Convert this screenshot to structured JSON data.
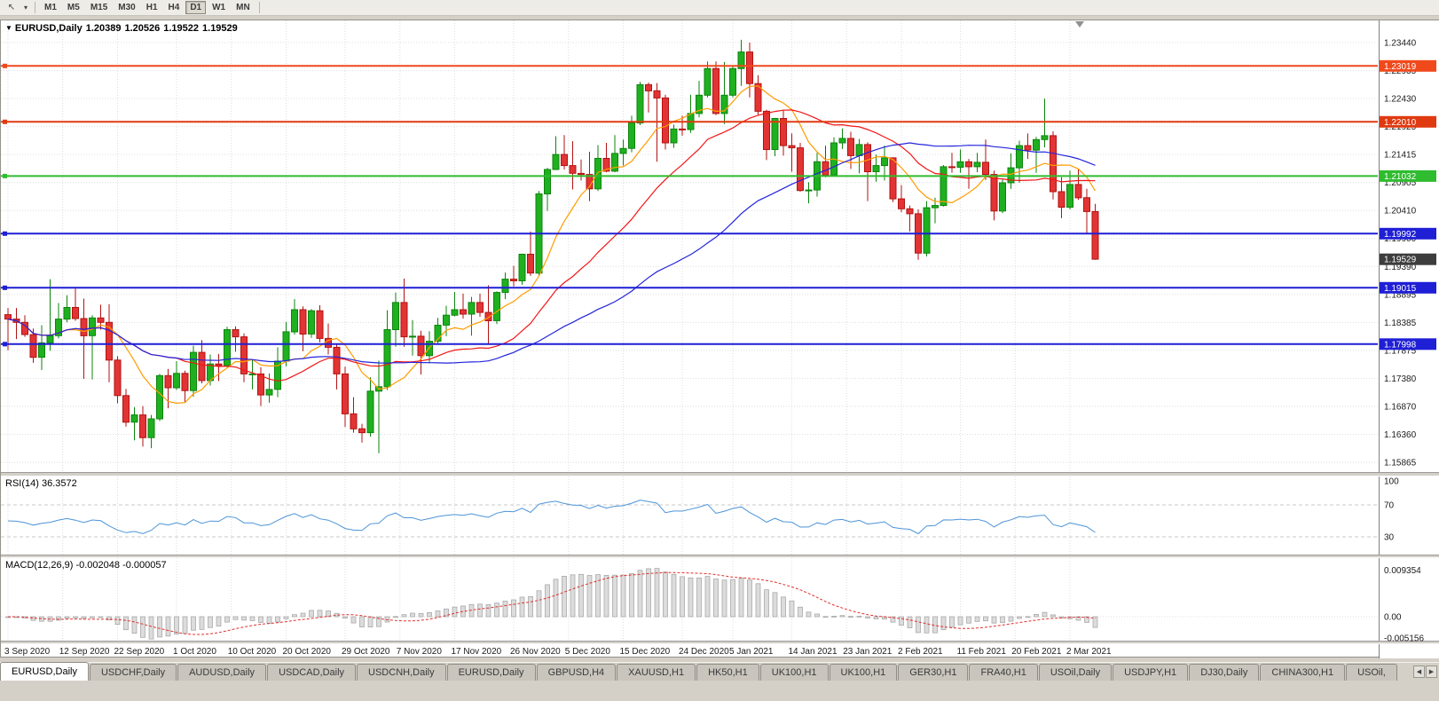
{
  "toolbar": {
    "pointer_glyph": "↖",
    "dropdown_glyph": "▾",
    "timeframes": [
      {
        "label": "M1"
      },
      {
        "label": "M5"
      },
      {
        "label": "M15"
      },
      {
        "label": "M30"
      },
      {
        "label": "H1"
      },
      {
        "label": "H4"
      },
      {
        "label": "D1",
        "active": true
      },
      {
        "label": "W1"
      },
      {
        "label": "MN"
      }
    ]
  },
  "quote": {
    "collapse_glyph": "▼",
    "symbol": "EURUSD,Daily",
    "open": "1.20389",
    "high": "1.20526",
    "low": "1.19522",
    "close": "1.19529"
  },
  "price_axis": {
    "top_value": 1.2344,
    "bottom_value": 1.15865,
    "labels": [
      "1.23440",
      "1.22935",
      "1.22430",
      "1.21925",
      "1.21415",
      "1.20905",
      "1.20410",
      "1.19900",
      "1.19390",
      "1.18895",
      "1.18385",
      "1.17875",
      "1.17380",
      "1.16870",
      "1.16360",
      "1.15865"
    ]
  },
  "levels": [
    {
      "price": 1.23019,
      "label": "1.23019",
      "color": "#f0491c"
    },
    {
      "price": 1.2201,
      "label": "1.22010",
      "color": "#e03a10"
    },
    {
      "price": 1.21032,
      "label": "1.21032",
      "color": "#2fbc2f"
    },
    {
      "price": 1.19992,
      "label": "1.19992",
      "color": "#1f1fd6"
    },
    {
      "price": 1.19015,
      "label": "1.19015",
      "color": "#1f1fd6"
    },
    {
      "price": 1.17998,
      "label": "1.17998",
      "color": "#1f1fd6"
    }
  ],
  "current_price": {
    "value": 1.19529,
    "label": "1.19529",
    "badge_color": "#3d3d3d"
  },
  "chart_data": {
    "type": "candlestick",
    "symbol": "EURUSD",
    "timeframe": "Daily",
    "last_bar": {
      "open": 1.20389,
      "high": 1.20526,
      "low": 1.19522,
      "close": 1.19529
    },
    "moving_averages": [
      {
        "type": "sma",
        "period": 8,
        "color": "#ff9c00"
      },
      {
        "type": "sma",
        "period": 21,
        "color": "#f21616"
      },
      {
        "type": "sma",
        "period": 45,
        "color": "#2424dd"
      }
    ],
    "date_ticks": [
      {
        "label": "3 Sep 2020",
        "i": 0
      },
      {
        "label": "12 Sep 2020",
        "i": 6.5
      },
      {
        "label": "22 Sep 2020",
        "i": 13
      },
      {
        "label": "1 Oct 2020",
        "i": 20
      },
      {
        "label": "10 Oct 2020",
        "i": 26.5
      },
      {
        "label": "20 Oct 2020",
        "i": 33
      },
      {
        "label": "29 Oct 2020",
        "i": 40
      },
      {
        "label": "7 Nov 2020",
        "i": 46.5
      },
      {
        "label": "17 Nov 2020",
        "i": 53
      },
      {
        "label": "26 Nov 2020",
        "i": 60
      },
      {
        "label": "5 Dec 2020",
        "i": 66.5
      },
      {
        "label": "15 Dec 2020",
        "i": 73
      },
      {
        "label": "24 Dec 2020",
        "i": 80
      },
      {
        "label": "5 Jan 2021",
        "i": 86
      },
      {
        "label": "14 Jan 2021",
        "i": 93
      },
      {
        "label": "23 Jan 2021",
        "i": 99.5
      },
      {
        "label": "2 Feb 2021",
        "i": 106
      },
      {
        "label": "11 Feb 2021",
        "i": 113
      },
      {
        "label": "20 Feb 2021",
        "i": 119.5
      },
      {
        "label": "2 Mar 2021",
        "i": 126
      }
    ],
    "candles": [
      [
        1.1853,
        1.1865,
        1.1789,
        1.1845
      ],
      [
        1.1845,
        1.1865,
        1.1809,
        1.1839
      ],
      [
        1.1839,
        1.1852,
        1.1813,
        1.1817
      ],
      [
        1.1817,
        1.1828,
        1.1766,
        1.1776
      ],
      [
        1.1776,
        1.1834,
        1.1753,
        1.1802
      ],
      [
        1.1802,
        1.1917,
        1.1788,
        1.1815
      ],
      [
        1.1815,
        1.1874,
        1.181,
        1.1845
      ],
      [
        1.1845,
        1.1888,
        1.1839,
        1.1866
      ],
      [
        1.1866,
        1.19,
        1.1842,
        1.1846
      ],
      [
        1.1846,
        1.1882,
        1.1737,
        1.1815
      ],
      [
        1.1815,
        1.1852,
        1.1736,
        1.1847
      ],
      [
        1.1847,
        1.1871,
        1.1826,
        1.1839
      ],
      [
        1.1839,
        1.1872,
        1.1731,
        1.1771
      ],
      [
        1.1771,
        1.1778,
        1.1693,
        1.1707
      ],
      [
        1.1707,
        1.1719,
        1.1651,
        1.1659
      ],
      [
        1.1659,
        1.1686,
        1.1626,
        1.1672
      ],
      [
        1.1672,
        1.1688,
        1.1615,
        1.1631
      ],
      [
        1.1631,
        1.1672,
        1.1612,
        1.1665
      ],
      [
        1.1665,
        1.1746,
        1.1661,
        1.1743
      ],
      [
        1.1743,
        1.1755,
        1.1684,
        1.1721
      ],
      [
        1.1721,
        1.1769,
        1.1717,
        1.1747
      ],
      [
        1.1747,
        1.1752,
        1.1695,
        1.1716
      ],
      [
        1.1716,
        1.1797,
        1.1705,
        1.1785
      ],
      [
        1.1785,
        1.1807,
        1.1729,
        1.1734
      ],
      [
        1.1734,
        1.1781,
        1.1725,
        1.1764
      ],
      [
        1.1764,
        1.1782,
        1.1733,
        1.1761
      ],
      [
        1.1761,
        1.1831,
        1.1758,
        1.1826
      ],
      [
        1.1826,
        1.1832,
        1.1786,
        1.1813
      ],
      [
        1.1813,
        1.1819,
        1.1731,
        1.1746
      ],
      [
        1.1746,
        1.1772,
        1.1718,
        1.1746
      ],
      [
        1.1746,
        1.1758,
        1.1688,
        1.1708
      ],
      [
        1.1708,
        1.1747,
        1.1694,
        1.1718
      ],
      [
        1.1718,
        1.1794,
        1.1704,
        1.1769
      ],
      [
        1.1769,
        1.184,
        1.176,
        1.1822
      ],
      [
        1.1822,
        1.1881,
        1.1817,
        1.1862
      ],
      [
        1.1862,
        1.1868,
        1.1787,
        1.1818
      ],
      [
        1.1818,
        1.1863,
        1.1811,
        1.186
      ],
      [
        1.186,
        1.187,
        1.1803,
        1.181
      ],
      [
        1.181,
        1.1837,
        1.1781,
        1.1794
      ],
      [
        1.1794,
        1.18,
        1.1718,
        1.1746
      ],
      [
        1.1746,
        1.1759,
        1.165,
        1.1674
      ],
      [
        1.1674,
        1.1704,
        1.164,
        1.1647
      ],
      [
        1.1647,
        1.1656,
        1.1622,
        1.164
      ],
      [
        1.164,
        1.174,
        1.1633,
        1.1715
      ],
      [
        1.1715,
        1.177,
        1.1603,
        1.1723
      ],
      [
        1.1723,
        1.1861,
        1.1717,
        1.1826
      ],
      [
        1.1826,
        1.1893,
        1.1795,
        1.1875
      ],
      [
        1.1875,
        1.1918,
        1.1795,
        1.1813
      ],
      [
        1.1813,
        1.1843,
        1.1779,
        1.1814
      ],
      [
        1.1814,
        1.1824,
        1.1745,
        1.1779
      ],
      [
        1.1779,
        1.1823,
        1.1765,
        1.1805
      ],
      [
        1.1805,
        1.1847,
        1.1799,
        1.1834
      ],
      [
        1.1834,
        1.1869,
        1.1814,
        1.1852
      ],
      [
        1.1852,
        1.1894,
        1.185,
        1.1862
      ],
      [
        1.1862,
        1.1891,
        1.1846,
        1.1854
      ],
      [
        1.1854,
        1.1885,
        1.1815,
        1.1875
      ],
      [
        1.1875,
        1.1891,
        1.1849,
        1.1857
      ],
      [
        1.1857,
        1.1906,
        1.18,
        1.1842
      ],
      [
        1.1842,
        1.1895,
        1.1836,
        1.1893
      ],
      [
        1.1893,
        1.1929,
        1.1881,
        1.1917
      ],
      [
        1.1917,
        1.1941,
        1.1904,
        1.1914
      ],
      [
        1.1914,
        1.1963,
        1.1907,
        1.1962
      ],
      [
        1.1962,
        1.2003,
        1.1923,
        1.1928
      ],
      [
        1.1928,
        1.2076,
        1.1922,
        1.2071
      ],
      [
        1.2071,
        1.2118,
        1.204,
        1.2115
      ],
      [
        1.2115,
        1.2175,
        1.2114,
        1.2142
      ],
      [
        1.2142,
        1.2177,
        1.2115,
        1.2122
      ],
      [
        1.2122,
        1.2166,
        1.2079,
        1.2108
      ],
      [
        1.2108,
        1.2133,
        1.2095,
        1.2106
      ],
      [
        1.2106,
        1.2147,
        1.2058,
        1.208
      ],
      [
        1.208,
        1.2159,
        1.2076,
        1.2135
      ],
      [
        1.2135,
        1.2163,
        1.211,
        1.2112
      ],
      [
        1.2112,
        1.2177,
        1.211,
        1.2144
      ],
      [
        1.2144,
        1.2169,
        1.2122,
        1.2153
      ],
      [
        1.2153,
        1.2212,
        1.2146,
        1.2199
      ],
      [
        1.2199,
        1.2273,
        1.2195,
        1.2268
      ],
      [
        1.2268,
        1.2272,
        1.2218,
        1.2257
      ],
      [
        1.2257,
        1.2271,
        1.2129,
        1.2244
      ],
      [
        1.2244,
        1.225,
        1.2151,
        1.2163
      ],
      [
        1.2163,
        1.2196,
        1.2154,
        1.2188
      ],
      [
        1.2188,
        1.2212,
        1.2176,
        1.2187
      ],
      [
        1.2187,
        1.225,
        1.2181,
        1.2216
      ],
      [
        1.2216,
        1.2275,
        1.2209,
        1.2249
      ],
      [
        1.2249,
        1.231,
        1.2245,
        1.2297
      ],
      [
        1.2297,
        1.231,
        1.2213,
        1.2216
      ],
      [
        1.2216,
        1.2309,
        1.2197,
        1.2249
      ],
      [
        1.2249,
        1.2303,
        1.2245,
        1.2297
      ],
      [
        1.2297,
        1.2349,
        1.2266,
        1.2327
      ],
      [
        1.2327,
        1.2344,
        1.2245,
        1.227
      ],
      [
        1.227,
        1.2285,
        1.2214,
        1.222
      ],
      [
        1.222,
        1.2223,
        1.2132,
        1.2151
      ],
      [
        1.2151,
        1.2208,
        1.2139,
        1.2207
      ],
      [
        1.2207,
        1.2223,
        1.214,
        1.2158
      ],
      [
        1.2158,
        1.218,
        1.2111,
        1.2154
      ],
      [
        1.2154,
        1.2163,
        1.2075,
        1.2077
      ],
      [
        1.2077,
        1.2092,
        1.2054,
        1.2078
      ],
      [
        1.2078,
        1.2145,
        1.2066,
        1.2129
      ],
      [
        1.2129,
        1.2158,
        1.2101,
        1.2105
      ],
      [
        1.2105,
        1.2173,
        1.2103,
        1.2163
      ],
      [
        1.2163,
        1.2189,
        1.2152,
        1.2171
      ],
      [
        1.2171,
        1.2183,
        1.2116,
        1.214
      ],
      [
        1.214,
        1.217,
        1.2108,
        1.216
      ],
      [
        1.216,
        1.2164,
        1.2058,
        1.2111
      ],
      [
        1.2111,
        1.2142,
        1.2093,
        1.2122
      ],
      [
        1.2122,
        1.2158,
        1.2095,
        1.2136
      ],
      [
        1.2136,
        1.2137,
        1.2056,
        1.2062
      ],
      [
        1.2062,
        1.2087,
        1.2038,
        1.2044
      ],
      [
        1.2044,
        1.205,
        1.2003,
        1.2035
      ],
      [
        1.2035,
        1.2043,
        1.1952,
        1.1964
      ],
      [
        1.1964,
        1.2058,
        1.1958,
        1.2046
      ],
      [
        1.2046,
        1.2064,
        1.2018,
        1.205
      ],
      [
        1.205,
        1.2123,
        1.2048,
        1.212
      ],
      [
        1.212,
        1.2145,
        1.2109,
        1.2119
      ],
      [
        1.2119,
        1.2151,
        1.2109,
        1.2129
      ],
      [
        1.2129,
        1.2134,
        1.208,
        1.212
      ],
      [
        1.212,
        1.2145,
        1.211,
        1.2128
      ],
      [
        1.2128,
        1.2169,
        1.2096,
        1.2106
      ],
      [
        1.2106,
        1.2113,
        1.2023,
        1.204
      ],
      [
        1.204,
        1.2097,
        1.2036,
        1.2091
      ],
      [
        1.2091,
        1.2144,
        1.208,
        1.2118
      ],
      [
        1.2118,
        1.2167,
        1.2091,
        1.2158
      ],
      [
        1.2158,
        1.218,
        1.2134,
        1.215
      ],
      [
        1.215,
        1.2174,
        1.2109,
        1.2169
      ],
      [
        1.2169,
        1.2243,
        1.2155,
        1.2176
      ],
      [
        1.2176,
        1.2184,
        1.2061,
        1.2075
      ],
      [
        1.2075,
        1.2101,
        1.2027,
        1.2047
      ],
      [
        1.2047,
        1.2113,
        1.2043,
        1.2088
      ],
      [
        1.2088,
        1.2115,
        1.206,
        1.2064
      ],
      [
        1.2064,
        1.208,
        1.1998,
        1.2039
      ],
      [
        1.2039,
        1.2053,
        1.1952,
        1.1953
      ]
    ]
  },
  "rsi": {
    "label": "RSI(14) 36.3572",
    "period": 14,
    "color": "#4d94d8",
    "axis_labels": [
      {
        "value": 100,
        "label": "100"
      },
      {
        "value": 70,
        "label": "70"
      },
      {
        "value": 30,
        "label": "30"
      }
    ]
  },
  "macd": {
    "label": "MACD(12,26,9) -0.002048 -0.000057",
    "fast": 12,
    "slow": 26,
    "signal": 9,
    "bar_color": "#dcdcdc",
    "bar_stroke": "#a0a0a0",
    "signal_color": "#e03030",
    "axis_labels": [
      {
        "value": 0.009354,
        "label": "0.009354"
      },
      {
        "value": 0,
        "label": "0.00"
      },
      {
        "value": -0.005156,
        "label": "-0.005156"
      }
    ]
  },
  "tabbar": {
    "left_glyph": "◀",
    "right_glyph": "▶",
    "tabs": [
      {
        "label": "EURUSD,Daily",
        "active": true
      },
      {
        "label": "USDCHF,Daily"
      },
      {
        "label": "AUDUSD,Daily"
      },
      {
        "label": "USDCAD,Daily"
      },
      {
        "label": "USDCNH,Daily"
      },
      {
        "label": "EURUSD,Daily"
      },
      {
        "label": "GBPUSD,H4"
      },
      {
        "label": "XAUUSD,H1"
      },
      {
        "label": "HK50,H1"
      },
      {
        "label": "UK100,H1"
      },
      {
        "label": "UK100,H1"
      },
      {
        "label": "GER30,H1"
      },
      {
        "label": "FRA40,H1"
      },
      {
        "label": "USOil,Daily"
      },
      {
        "label": "USDJPY,H1"
      },
      {
        "label": "DJ30,Daily"
      },
      {
        "label": "CHINA300,H1"
      },
      {
        "label": "USOil,"
      }
    ]
  },
  "colors": {
    "grid": "#dedede",
    "bull_fill": "#1fb01f",
    "bull_stroke": "#0d840d",
    "bear_fill": "#e23434",
    "bear_stroke": "#b31212",
    "axis_text": "#1a1a1a",
    "rsi_level_line": "#c9c9c9"
  }
}
